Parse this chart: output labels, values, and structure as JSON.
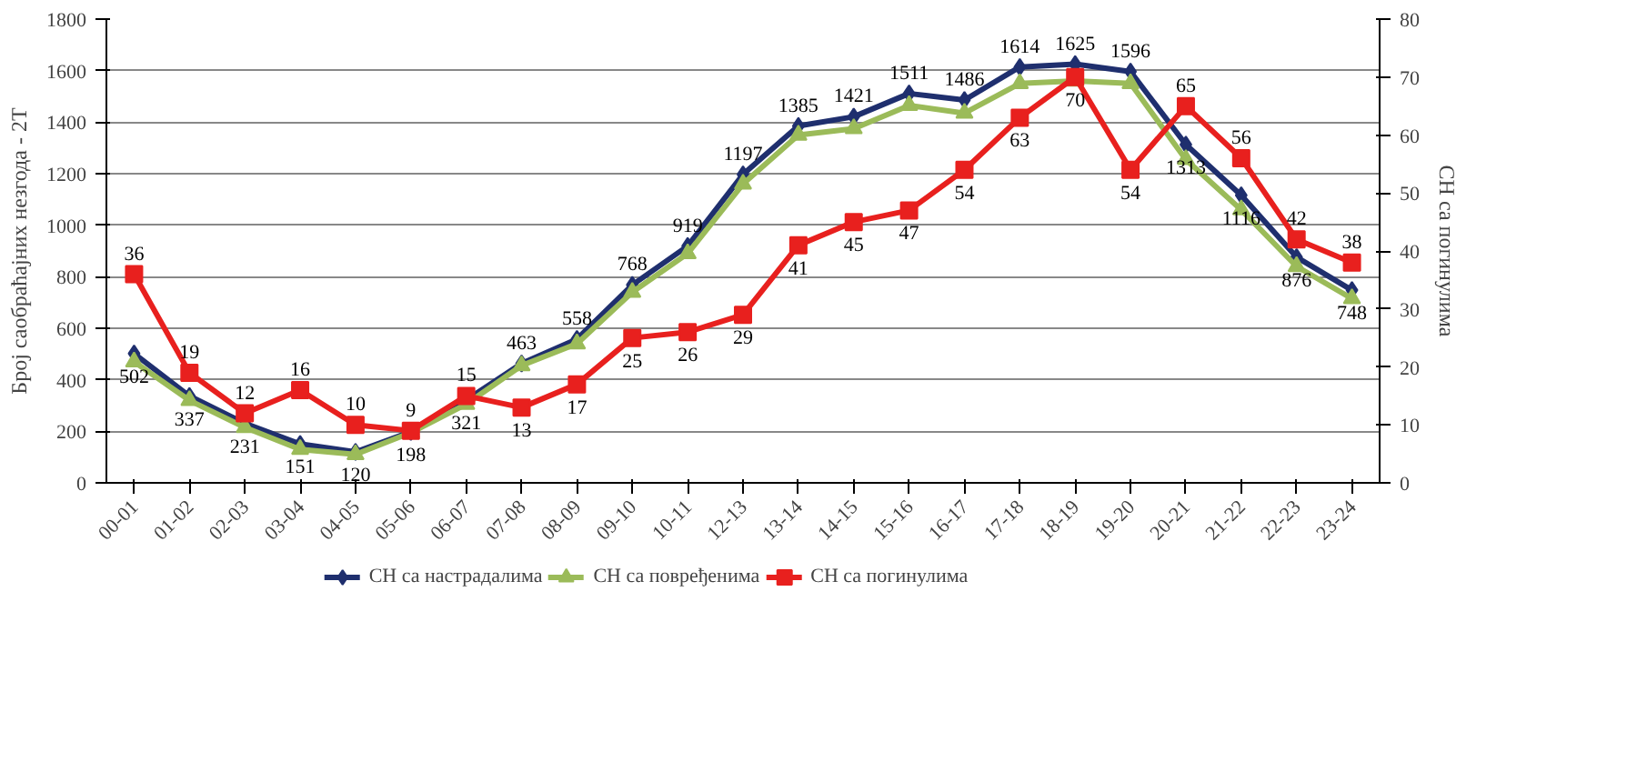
{
  "chart_data": {
    "type": "line",
    "ylabel": "Број саобраћајних незгода - 2Т",
    "y2label": "СН са погинулима",
    "categories": [
      "00-01",
      "01-02",
      "02-03",
      "03-04",
      "04-05",
      "05-06",
      "06-07",
      "07-08",
      "08-09",
      "09-10",
      "10-11",
      "12-13",
      "13-14",
      "14-15",
      "15-16",
      "16-17",
      "17-18",
      "18-19",
      "19-20",
      "20-21",
      "21-22",
      "22-23",
      "23-24"
    ],
    "series": [
      {
        "name": "СН са настрадалима",
        "color": "#1f2f6e",
        "marker": "diamond",
        "values": [
          502,
          337,
          231,
          151,
          120,
          198,
          321,
          463,
          558,
          768,
          919,
          1197,
          1385,
          1421,
          1511,
          1486,
          1614,
          1625,
          1596,
          1313,
          1116,
          876,
          748
        ],
        "value_labels": [
          "502",
          "337",
          "231",
          "151",
          "120",
          "198",
          "321",
          "463",
          "558",
          "768",
          "919",
          "1197",
          "1385",
          "1421",
          "1511",
          "1486",
          "1614",
          "1625",
          "1596",
          "1313",
          "1116",
          "876",
          "748"
        ]
      },
      {
        "name": "СН са повређенима",
        "color": "#9bbb59",
        "marker": "triangle",
        "values": [
          470,
          320,
          215,
          130,
          110,
          195,
          305,
          455,
          540,
          740,
          890,
          1160,
          1350,
          1375,
          1465,
          1435,
          1550,
          1560,
          1550,
          1255,
          1060,
          840,
          715
        ]
      },
      {
        "name": "СН са погинулима",
        "color": "#e8201e",
        "marker": "square",
        "axis": "y2",
        "values": [
          36,
          19,
          12,
          16,
          10,
          9,
          15,
          13,
          17,
          25,
          26,
          29,
          41,
          45,
          47,
          54,
          63,
          70,
          54,
          65,
          56,
          42,
          38
        ],
        "value_labels": [
          "36",
          "19",
          "12",
          "16",
          "10",
          "9",
          "15",
          "13",
          "17",
          "25",
          "26",
          "29",
          "41",
          "45",
          "47",
          "54",
          "63",
          "70",
          "54",
          "65",
          "56",
          "42",
          "38"
        ]
      }
    ],
    "ylim": [
      0,
      1800
    ],
    "yticks": [
      0,
      200,
      400,
      600,
      800,
      1000,
      1200,
      1400,
      1600,
      1800
    ],
    "y2lim": [
      0,
      80
    ],
    "y2ticks": [
      0,
      10,
      20,
      30,
      40,
      50,
      60,
      70,
      80
    ],
    "grid": "y",
    "legend": "bottom"
  }
}
